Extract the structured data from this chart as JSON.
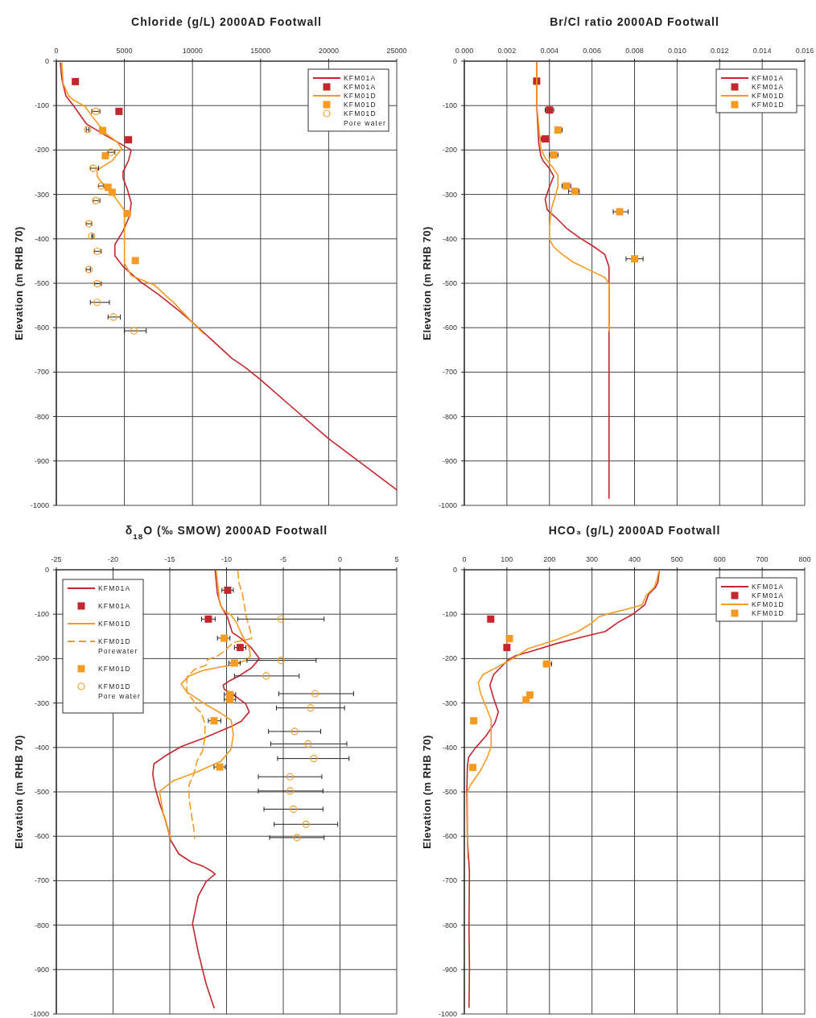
{
  "chart_data": [
    {
      "type": "line",
      "title": "Chloride (g/L) 2000AD Footwall",
      "ylabel": "Elevation (m RHB 70)",
      "xlim": [
        0,
        25000
      ],
      "xticks": [
        0,
        5000,
        10000,
        15000,
        20000,
        25000
      ],
      "ylim": [
        -1000,
        0
      ],
      "yticks": [
        0,
        -100,
        -200,
        -300,
        -400,
        -500,
        -600,
        -700,
        -800,
        -900,
        -1000
      ],
      "grid": true,
      "legend": "top right",
      "series": [
        {
          "name": "KFM01A",
          "type": "line",
          "color": "#c1272d",
          "marker": "none",
          "line_style": "solid",
          "x": [
            300,
            400,
            700,
            1300,
            2200,
            3500,
            4700,
            5500,
            5300,
            4900,
            4900,
            5200,
            5500,
            5400,
            4900,
            4300,
            4300,
            4900,
            6200,
            7500,
            9100,
            10000,
            11400,
            12900,
            13900,
            15000,
            17500,
            20000,
            25000
          ],
          "values": [
            -4,
            -39,
            -78,
            -102,
            -141,
            -165,
            -186,
            -200,
            -224,
            -249,
            -263,
            -287,
            -319,
            -347,
            -382,
            -413,
            -438,
            -462,
            -497,
            -525,
            -564,
            -588,
            -627,
            -669,
            -690,
            -717,
            -784,
            -850,
            -965
          ]
        },
        {
          "name": "KFM01A",
          "type": "scatter",
          "color": "#c1272d",
          "marker": "square",
          "x": [
            1400,
            4600,
            5300
          ],
          "values": [
            -46,
            -113,
            -177
          ]
        },
        {
          "name": "KFM01D",
          "type": "line",
          "color": "#f59b23",
          "marker": "none",
          "line_style": "solid",
          "x": [
            400,
            500,
            900,
            1300,
            2100,
            2700,
            3600,
            4500,
            4800,
            4100,
            3000,
            3000,
            3500,
            4100,
            5000,
            5000,
            5000,
            5500,
            7200,
            8700,
            10000,
            10800
          ],
          "values": [
            -4,
            -50,
            -78,
            -88,
            -102,
            -127,
            -162,
            -183,
            -197,
            -224,
            -245,
            -259,
            -280,
            -298,
            -336,
            -406,
            -455,
            -483,
            -504,
            -546,
            -588,
            -613
          ]
        },
        {
          "name": "KFM01D",
          "type": "scatter",
          "color": "#f59b23",
          "marker": "square",
          "x": [
            3400,
            3600,
            3800,
            4100,
            5200,
            5800
          ],
          "values": [
            -156,
            -213,
            -284,
            -295,
            -343,
            -449
          ]
        },
        {
          "name": "KFM01D Pore water",
          "type": "scatter",
          "color": "#f59b23",
          "marker": "circle",
          "x": [
            2900,
            2300,
            4000,
            2700,
            3300,
            2900,
            2400,
            2600,
            3000,
            2400,
            3000,
            3000,
            4200,
            5700
          ],
          "values": [
            -113,
            -154,
            -205,
            -241,
            -281,
            -314,
            -366,
            -394,
            -428,
            -469,
            -501,
            -543,
            -576,
            -607
          ],
          "xerrors": [
            [
              2600,
              3200
            ],
            [
              2200,
              2400
            ],
            [
              3800,
              4300
            ],
            [
              2500,
              3100
            ],
            [
              3100,
              3500
            ],
            [
              2700,
              3200
            ],
            [
              2200,
              2600
            ],
            [
              2600,
              2700
            ],
            [
              2800,
              3300
            ],
            [
              2200,
              2500
            ],
            [
              2800,
              3300
            ],
            [
              2500,
              3900
            ],
            [
              3800,
              4700
            ],
            [
              5000,
              6600
            ]
          ]
        }
      ]
    },
    {
      "type": "line",
      "title": "Br/Cl ratio 2000AD Footwall",
      "ylabel": "Elevation (m RHB 70)",
      "xlim": [
        0,
        0.016
      ],
      "xticks": [
        {
          "value": 0,
          "label": "0.000"
        },
        {
          "value": 0.002,
          "label": "0.002"
        },
        {
          "value": 0.004,
          "label": "0.004"
        },
        {
          "value": 0.006,
          "label": "0.006"
        },
        {
          "value": 0.008,
          "label": "0.008"
        },
        {
          "value": 0.01,
          "label": "0.010"
        },
        {
          "value": 0.012,
          "label": "0.012"
        },
        {
          "value": 0.014,
          "label": "0.014"
        },
        {
          "value": 0.016,
          "label": "0.016"
        }
      ],
      "ylim": [
        -1000,
        0
      ],
      "yticks": [
        0,
        -100,
        -200,
        -300,
        -400,
        -500,
        -600,
        -700,
        -800,
        -900,
        -1000
      ],
      "grid": true,
      "legend": "top right",
      "series": [
        {
          "name": "KFM01A",
          "type": "line",
          "color": "#c1272d",
          "marker": "none",
          "line_style": "solid",
          "x": [
            0.0034,
            0.0034,
            0.0035,
            0.0036,
            0.0037,
            0.004,
            0.0042,
            0.004,
            0.0038,
            0.0039,
            0.0043,
            0.0048,
            0.0054,
            0.0061,
            0.0066,
            0.0068,
            0.0068,
            0.0068,
            0.0068,
            0.0068
          ],
          "values": [
            -3,
            -97,
            -186,
            -214,
            -224,
            -242,
            -259,
            -283,
            -311,
            -335,
            -352,
            -376,
            -397,
            -418,
            -435,
            -463,
            -501,
            -767,
            -780,
            -984
          ]
        },
        {
          "name": "KFM01A",
          "type": "scatter",
          "color": "#c1272d",
          "marker": "square",
          "x": [
            0.0034,
            0.004,
            0.0038
          ],
          "values": [
            -45,
            -110,
            -175
          ],
          "xerrors": [
            null,
            [
              0.0038,
              0.0042
            ],
            [
              0.0036,
              0.0039
            ]
          ]
        },
        {
          "name": "KFM01D",
          "type": "line",
          "color": "#f59b23",
          "marker": "none",
          "line_style": "solid",
          "x": [
            0.0034,
            0.0034,
            0.0036,
            0.0038,
            0.0042,
            0.0044,
            0.0044,
            0.0041,
            0.004,
            0.004,
            0.0042,
            0.0046,
            0.0051,
            0.006,
            0.0066,
            0.0068,
            0.0068
          ],
          "values": [
            -3,
            -97,
            -197,
            -218,
            -242,
            -257,
            -283,
            -331,
            -373,
            -401,
            -418,
            -435,
            -452,
            -473,
            -487,
            -501,
            -608
          ]
        },
        {
          "name": "KFM01D",
          "type": "scatter",
          "color": "#f59b23",
          "marker": "square",
          "x": [
            0.0044,
            0.0042,
            0.0048,
            0.0052,
            0.0073,
            0.008
          ],
          "values": [
            -155,
            -211,
            -281,
            -293,
            -339,
            -445
          ],
          "xerrors": [
            [
              0.0043,
              0.0046
            ],
            [
              0.004,
              0.0044
            ],
            [
              0.0046,
              0.005
            ],
            [
              0.0049,
              0.0054
            ],
            [
              0.007,
              0.0077
            ],
            [
              0.0076,
              0.0084
            ]
          ]
        }
      ]
    },
    {
      "type": "line",
      "title": "δ$_{18}$O (‰ SMOW) 2000AD Footwall",
      "ylabel": "Elevation (m RHB 70)",
      "xlim": [
        -25,
        5
      ],
      "xticks": [
        -25,
        -20,
        -15,
        -10,
        -5,
        0,
        5
      ],
      "ylim": [
        -1000,
        0
      ],
      "yticks": [
        0,
        -100,
        -200,
        -300,
        -400,
        -500,
        -600,
        -700,
        -800,
        -900,
        -1000
      ],
      "grid": true,
      "legend": "top left",
      "series": [
        {
          "name": "KFM01A",
          "type": "line",
          "color": "#c1272d",
          "marker": "none",
          "line_style": "solid",
          "x": [
            -11,
            -10.8,
            -10.5,
            -9.9,
            -9.5,
            -8.7,
            -7.8,
            -7.1,
            -7.8,
            -8.9,
            -9.8,
            -10.3,
            -10.2,
            -9.1,
            -8.3,
            -8,
            -8.7,
            -9.6,
            -12.1,
            -14,
            -15.4,
            -16.4,
            -16.5,
            -16.3,
            -15.9,
            -15.4,
            -14.9,
            -14.2,
            -13.1,
            -12.1,
            -11.3,
            -11,
            -11.8,
            -12.5,
            -13,
            -12.5,
            -11.8,
            -11.1
          ],
          "values": [
            -3,
            -54,
            -81,
            -108,
            -141,
            -155,
            -176,
            -200,
            -221,
            -239,
            -251,
            -260,
            -269,
            -287,
            -302,
            -320,
            -341,
            -353,
            -380,
            -398,
            -419,
            -437,
            -461,
            -490,
            -526,
            -562,
            -610,
            -640,
            -658,
            -667,
            -679,
            -685,
            -702,
            -735,
            -797,
            -860,
            -932,
            -986
          ]
        },
        {
          "name": "KFM01A",
          "type": "scatter",
          "color": "#c1272d",
          "marker": "square",
          "x": [
            -9.9,
            -11.6,
            -8.8
          ],
          "values": [
            -46,
            -111,
            -175
          ],
          "xerrors": [
            [
              -10.4,
              -9.4
            ],
            [
              -12.2,
              -11
            ],
            [
              -9.3,
              -8.3
            ]
          ]
        },
        {
          "name": "KFM01D",
          "type": "line",
          "color": "#f59b23",
          "marker": "none",
          "line_style": "solid",
          "x": [
            -10.9,
            -10.6,
            -10.3,
            -9.6,
            -9.1,
            -8.7,
            -8,
            -7.9,
            -8.2,
            -9.4,
            -10.8,
            -12.1,
            -13.3,
            -14,
            -13.5,
            -11.9,
            -10.5,
            -9.6,
            -9.4,
            -9.6,
            -10.5,
            -12.6,
            -14.7,
            -15.9,
            -15.6,
            -15,
            -14.9
          ],
          "values": [
            -3,
            -75,
            -90,
            -102,
            -120,
            -144,
            -176,
            -194,
            -203,
            -214,
            -220,
            -227,
            -239,
            -257,
            -275,
            -302,
            -323,
            -338,
            -371,
            -404,
            -431,
            -455,
            -475,
            -499,
            -547,
            -598,
            -607
          ]
        },
        {
          "name": "KFM01D Porewater",
          "type": "line",
          "color": "#f59b23",
          "marker": "none",
          "line_style": "dashed",
          "x": [
            -9,
            -8.9,
            -8.6,
            -8.4,
            -8.3,
            -8.1,
            -7.9,
            -7.8,
            -8.4,
            -9.4,
            -10.3,
            -10.8,
            -11.7,
            -11.8,
            -12.8,
            -13.5,
            -13.5,
            -12.9,
            -12.7,
            -12.2,
            -11.9,
            -11.9,
            -12.1,
            -12.6,
            -12.9,
            -13.3,
            -13.3,
            -13.1,
            -12.9,
            -12.8
          ],
          "values": [
            -3,
            -30,
            -54,
            -84,
            -102,
            -120,
            -138,
            -155,
            -158,
            -164,
            -185,
            -194,
            -203,
            -215,
            -224,
            -242,
            -275,
            -296,
            -311,
            -323,
            -347,
            -377,
            -407,
            -431,
            -461,
            -484,
            -514,
            -550,
            -580,
            -604
          ]
        },
        {
          "name": "KFM01D",
          "type": "scatter",
          "color": "#f59b23",
          "marker": "square",
          "x": [
            -10.2,
            -9.3,
            -9.7,
            -9.7,
            -11.1,
            -10.6
          ],
          "values": [
            -154,
            -210,
            -281,
            -292,
            -340,
            -444
          ],
          "xerrors": [
            [
              -10.8,
              -9.7
            ],
            [
              -9.8,
              -8.8
            ],
            [
              -10.2,
              -9.2
            ],
            [
              -10.2,
              -9.2
            ],
            [
              -11.6,
              -10.5
            ],
            [
              -11.1,
              -10.1
            ]
          ]
        },
        {
          "name": "KFM01D Pore water",
          "type": "scatter",
          "color": "#f59b23",
          "marker": "circle",
          "x": [
            -5.2,
            -5.2,
            -6.5,
            -2.2,
            -2.6,
            -4,
            -2.8,
            -2.3,
            -4.4,
            -4.4,
            -4.1,
            -3,
            -3.8
          ],
          "values": [
            -111,
            -204,
            -239,
            -279,
            -311,
            -364,
            -392,
            -425,
            -466,
            -498,
            -539,
            -573,
            -603
          ],
          "xerrors": [
            [
              -9,
              -1.4
            ],
            [
              -8.2,
              -2.1
            ],
            [
              -9.3,
              -3.6
            ],
            [
              -5.4,
              1.2
            ],
            [
              -5.6,
              0.4
            ],
            [
              -6.3,
              -1.7
            ],
            [
              -6.1,
              0.6
            ],
            [
              -5.5,
              0.8
            ],
            [
              -7.2,
              -1.6
            ],
            [
              -7.2,
              -1.5
            ],
            [
              -6.7,
              -1.5
            ],
            [
              -5.8,
              -0.2
            ],
            [
              -6.2,
              -1.4
            ]
          ]
        }
      ]
    },
    {
      "type": "line",
      "title": "HCO₃ (g/L) 2000AD Footwall",
      "ylabel": "Elevation (m RHB 70)",
      "xlim": [
        0,
        800
      ],
      "xticks": [
        0,
        100,
        200,
        300,
        400,
        500,
        600,
        700,
        800
      ],
      "ylim": [
        -1000,
        0
      ],
      "yticks": [
        0,
        -100,
        -200,
        -300,
        -400,
        -500,
        -600,
        -700,
        -800,
        -900,
        -1000
      ],
      "grid": true,
      "legend": "top right",
      "series": [
        {
          "name": "KFM01A",
          "type": "line",
          "color": "#c1272d",
          "marker": "none",
          "line_style": "solid",
          "x": [
            458,
            455,
            449,
            433,
            424,
            396,
            362,
            331,
            291,
            217,
            156,
            119,
            103,
            69,
            60,
            69,
            80,
            72,
            51,
            26,
            10,
            7,
            6,
            7,
            12,
            11,
            12,
            11
          ],
          "values": [
            -4,
            -28,
            -40,
            -55,
            -79,
            -100,
            -118,
            -139,
            -148,
            -166,
            -184,
            -194,
            -203,
            -236,
            -260,
            -290,
            -320,
            -344,
            -374,
            -401,
            -422,
            -446,
            -500,
            -600,
            -680,
            -800,
            -900,
            -985
          ]
        },
        {
          "name": "KFM01A",
          "type": "scatter",
          "color": "#c1272d",
          "marker": "square",
          "x": [
            62,
            100
          ],
          "values": [
            -111,
            -175
          ]
        },
        {
          "name": "KFM01D",
          "type": "line",
          "color": "#f59b23",
          "marker": "none",
          "line_style": "solid",
          "x": [
            457,
            452,
            446,
            427,
            418,
            396,
            335,
            316,
            298,
            267,
            217,
            149,
            119,
            97,
            44,
            33,
            38,
            51,
            63,
            63,
            54,
            38,
            14,
            7,
            7,
            8
          ],
          "values": [
            -4,
            -25,
            -40,
            -58,
            -79,
            -85,
            -100,
            -106,
            -121,
            -139,
            -157,
            -178,
            -197,
            -209,
            -236,
            -254,
            -278,
            -308,
            -338,
            -398,
            -422,
            -452,
            -485,
            -500,
            -587,
            -650
          ]
        },
        {
          "name": "KFM01D",
          "type": "scatter",
          "color": "#f59b23",
          "marker": "square",
          "x": [
            106,
            194,
            154,
            145,
            22,
            20
          ],
          "values": [
            -155,
            -212,
            -282,
            -293,
            -340,
            -445
          ],
          "xerrors": [
            null,
            [
              186,
              205
            ],
            null,
            null,
            null,
            null
          ]
        }
      ]
    }
  ]
}
